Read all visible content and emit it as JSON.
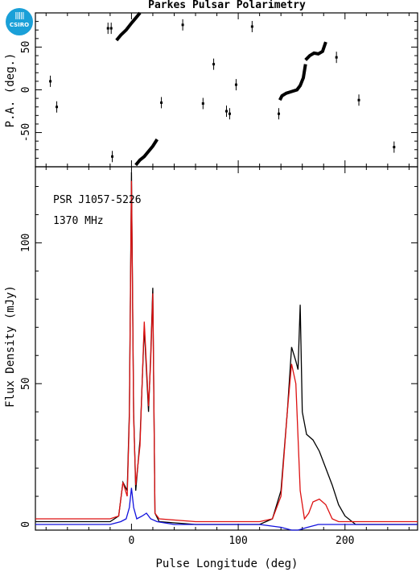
{
  "logo": {
    "text": "CSIRO"
  },
  "chart_data": [
    {
      "type": "scatter",
      "panel": "position-angle",
      "title": "Parkes Pulsar Polarimetry",
      "xlabel": "",
      "ylabel": "P.A. (deg.)",
      "xlim": [
        -90,
        268
      ],
      "ylim": [
        -90,
        90
      ],
      "yticks": [
        -50,
        0,
        50
      ],
      "points": [
        [
          -76,
          10
        ],
        [
          -70,
          -20
        ],
        [
          -22,
          72
        ],
        [
          -19,
          72
        ],
        [
          -18,
          -78
        ],
        [
          28,
          -15
        ],
        [
          48,
          76
        ],
        [
          67,
          -16
        ],
        [
          77,
          30
        ],
        [
          89,
          -25
        ],
        [
          92,
          -28
        ],
        [
          98,
          6
        ],
        [
          113,
          74
        ],
        [
          138,
          -28
        ],
        [
          192,
          38
        ],
        [
          213,
          -12
        ],
        [
          246,
          -67
        ]
      ],
      "tracks": [
        {
          "x": [
            -14,
            -10,
            -5,
            0,
            4,
            8
          ],
          "y": [
            58,
            64,
            70,
            78,
            84,
            90
          ]
        },
        {
          "x": [
            4,
            8,
            12,
            16,
            20,
            24
          ],
          "y": [
            -88,
            -82,
            -78,
            -72,
            -66,
            -58
          ]
        },
        {
          "x": [
            139,
            141,
            145,
            150,
            155,
            158,
            161,
            163
          ],
          "y": [
            -12,
            -7,
            -4,
            -2,
            0,
            5,
            14,
            30
          ]
        },
        {
          "x": [
            163,
            167,
            171,
            175,
            179,
            182
          ],
          "y": [
            35,
            40,
            43,
            42,
            45,
            56
          ]
        }
      ]
    },
    {
      "type": "line",
      "panel": "flux-density",
      "title": "",
      "annotations": [
        "PSR J1057-5226",
        "1370 MHz"
      ],
      "xlabel": "Pulse Longitude (deg)",
      "ylabel": "Flux Density (mJy)",
      "xlim": [
        -90,
        268
      ],
      "ylim": [
        -2,
        127
      ],
      "xticks": [
        0,
        100,
        200
      ],
      "yticks": [
        0,
        50,
        100
      ],
      "series": [
        {
          "color": "#000000",
          "x": [
            -90,
            -20,
            -12,
            -8,
            -4,
            -2,
            0,
            2,
            4,
            8,
            12,
            16,
            18,
            20,
            22,
            26,
            60,
            120,
            132,
            140,
            146,
            150,
            154,
            156,
            158,
            160,
            164,
            170,
            176,
            182,
            188,
            194,
            200,
            210,
            268
          ],
          "y": [
            1,
            1,
            3,
            15,
            12,
            40,
            125,
            40,
            12,
            30,
            70,
            40,
            60,
            84,
            4,
            1,
            0,
            0,
            2,
            12,
            40,
            63,
            58,
            55,
            78,
            40,
            32,
            30,
            26,
            20,
            14,
            7,
            3,
            0,
            0
          ]
        },
        {
          "color": "#dd1111",
          "x": [
            -90,
            -20,
            -12,
            -8,
            -4,
            -2,
            0,
            2,
            4,
            8,
            12,
            16,
            18,
            20,
            22,
            26,
            60,
            120,
            132,
            140,
            146,
            150,
            154,
            158,
            162,
            166,
            170,
            176,
            182,
            188,
            194,
            268
          ],
          "y": [
            2,
            2,
            3,
            15,
            10,
            38,
            122,
            38,
            14,
            28,
            72,
            42,
            58,
            82,
            4,
            2,
            1,
            1,
            2,
            10,
            40,
            57,
            50,
            12,
            2,
            4,
            8,
            9,
            7,
            2,
            1,
            1
          ]
        },
        {
          "color": "#1111dd",
          "x": [
            -90,
            -20,
            -10,
            -5,
            -2,
            0,
            2,
            5,
            10,
            14,
            18,
            24,
            40,
            120,
            140,
            150,
            156,
            165,
            175,
            200,
            268
          ],
          "y": [
            0,
            0,
            1,
            2,
            6,
            13,
            6,
            2,
            3,
            4,
            2,
            1,
            0,
            0,
            -1,
            -2,
            -2,
            -1,
            0,
            0,
            0
          ]
        }
      ]
    }
  ]
}
